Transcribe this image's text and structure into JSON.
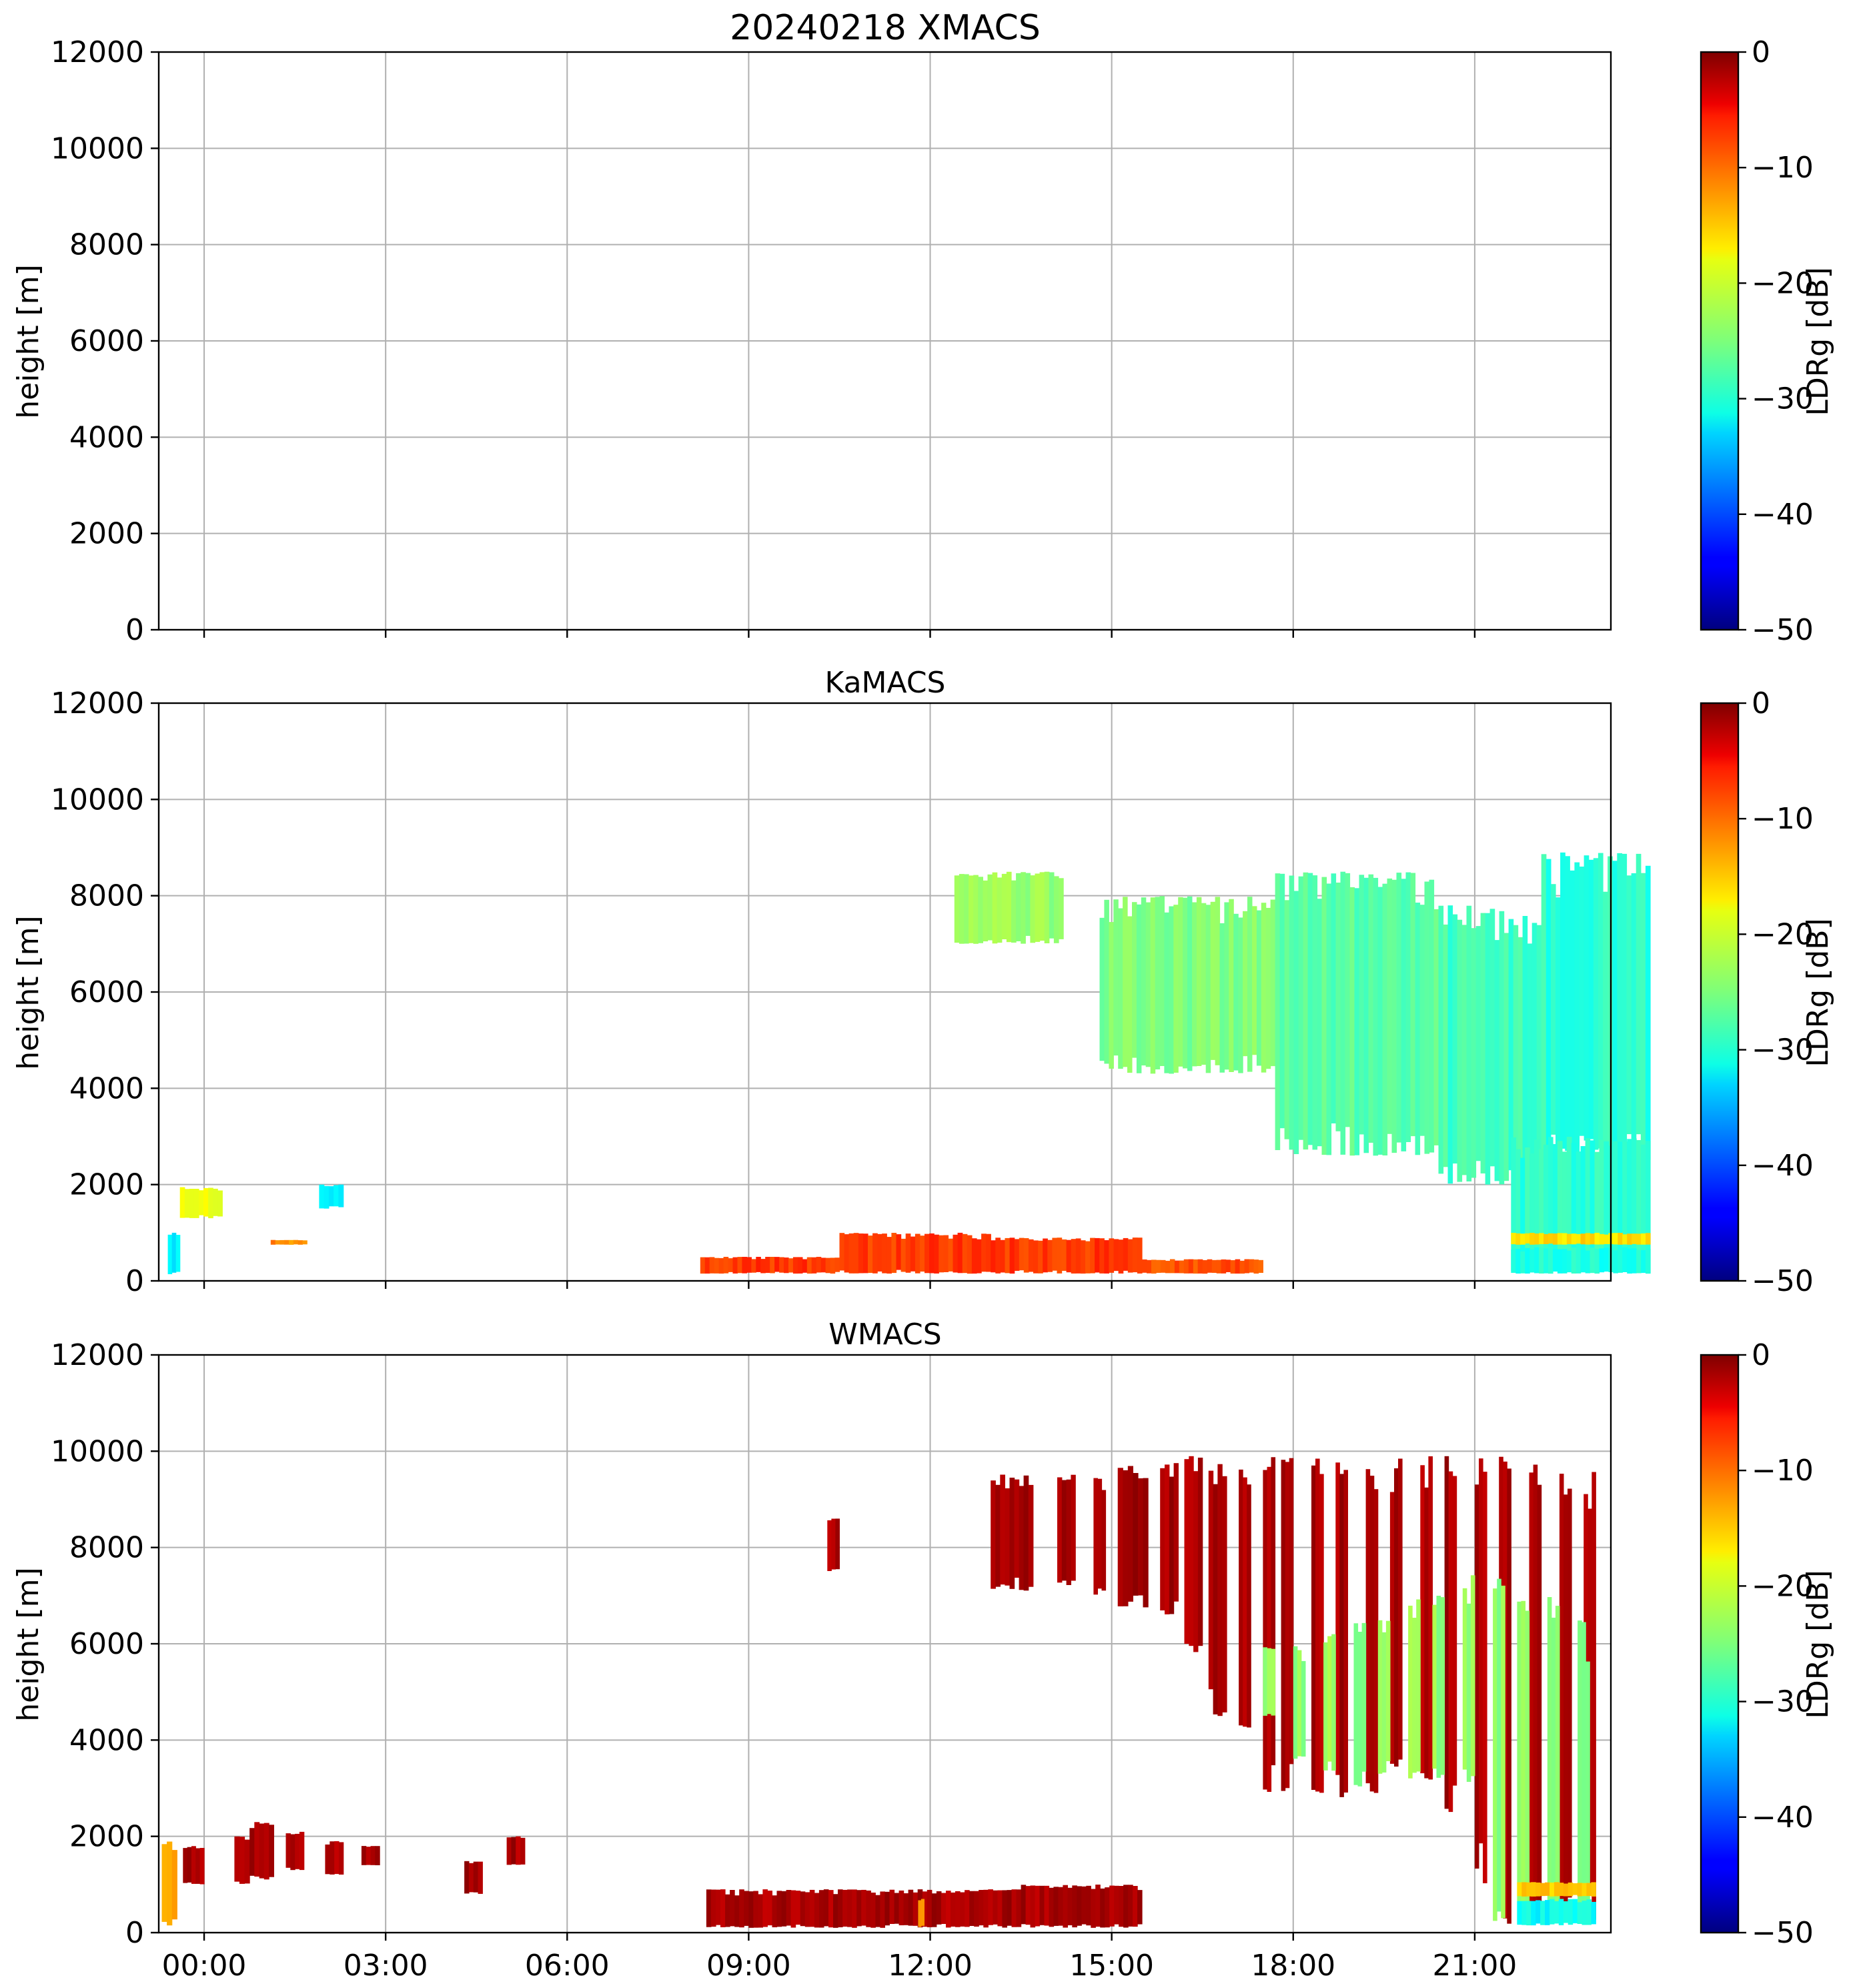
{
  "chart_data": [
    {
      "type": "heatmap",
      "title": "20240218 XMACS",
      "ylabel": "height [m]",
      "ylim": [
        0,
        12000
      ],
      "yticks": [
        "0",
        "2000",
        "4000",
        "6000",
        "8000",
        "10000",
        "12000"
      ],
      "xlim": [
        "23:00",
        "23:59"
      ],
      "grid": true,
      "colorbar": {
        "label": "LDRg [dB]",
        "range": [
          -50,
          0
        ],
        "ticks": [
          "0",
          "−10",
          "−20",
          "−30",
          "−40",
          "−50"
        ],
        "colormap": "jet"
      },
      "regions": []
    },
    {
      "type": "heatmap",
      "title": "KaMACS",
      "ylabel": "height [m]",
      "ylim": [
        0,
        12000
      ],
      "yticks": [
        "0",
        "2000",
        "4000",
        "6000",
        "8000",
        "10000",
        "12000"
      ],
      "grid": true,
      "colorbar": {
        "label": "LDRg [dB]",
        "range": [
          -50,
          0
        ],
        "ticks": [
          "0",
          "−10",
          "−20",
          "−30",
          "−40",
          "−50"
        ],
        "colormap": "jet"
      },
      "regions": [
        {
          "t": [
            -0.6,
            -0.4
          ],
          "z": [
            100,
            1000
          ],
          "ldr": -32
        },
        {
          "t": [
            -0.4,
            0.3
          ],
          "z": [
            1300,
            1950
          ],
          "ldr": -20
        },
        {
          "t": [
            1.1,
            1.7
          ],
          "z": [
            750,
            850
          ],
          "ldr": -13
        },
        {
          "t": [
            1.9,
            2.3
          ],
          "z": [
            1500,
            2000
          ],
          "ldr": -32
        },
        {
          "t": [
            8.2,
            10.5
          ],
          "z": [
            150,
            500
          ],
          "ldr": -9
        },
        {
          "t": [
            10.5,
            13.0
          ],
          "z": [
            150,
            1000
          ],
          "ldr": -9
        },
        {
          "t": [
            13.0,
            15.5
          ],
          "z": [
            150,
            900
          ],
          "ldr": -9
        },
        {
          "t": [
            15.5,
            17.5
          ],
          "z": [
            150,
            450
          ],
          "ldr": -10
        },
        {
          "t": [
            12.4,
            14.2
          ],
          "z": [
            7000,
            8500
          ],
          "ldr": -24
        },
        {
          "t": [
            14.8,
            17.7
          ],
          "z": [
            4300,
            8000
          ],
          "ldr": -25
        },
        {
          "t": [
            17.7,
            20.4
          ],
          "z": [
            2600,
            8500
          ],
          "ldr": -27
        },
        {
          "t": [
            20.4,
            22.1
          ],
          "z": [
            2000,
            7800
          ],
          "ldr": -28
        },
        {
          "t": [
            22.1,
            23.9
          ],
          "z": [
            2500,
            8900
          ],
          "ldr": -29
        },
        {
          "t": [
            21.6,
            23.9
          ],
          "z": [
            150,
            3000
          ],
          "ldr": -29
        },
        {
          "t": [
            21.6,
            23.9
          ],
          "z": [
            150,
            700
          ],
          "ldr": -30
        },
        {
          "t": [
            21.6,
            23.9
          ],
          "z": [
            750,
            1000
          ],
          "ldr": -17
        }
      ]
    },
    {
      "type": "heatmap",
      "title": "WMACS",
      "ylabel": "height [m]",
      "ylim": [
        0,
        12000
      ],
      "yticks": [
        "0",
        "2000",
        "4000",
        "6000",
        "8000",
        "10000",
        "12000"
      ],
      "xlabel": "",
      "xticks": [
        "00:00",
        "03:00",
        "06:00",
        "09:00",
        "12:00",
        "15:00",
        "18:00",
        "21:00"
      ],
      "xlim": [
        -0.75,
        23.25
      ],
      "grid": true,
      "colorbar": {
        "label": "LDRg [dB]",
        "range": [
          -50,
          0
        ],
        "ticks": [
          "0",
          "−10",
          "−20",
          "−30",
          "−40",
          "−50"
        ],
        "colormap": "jet"
      },
      "regions": [
        {
          "t": [
            -0.7,
            -0.45
          ],
          "z": [
            150,
            1900
          ],
          "ldr": -15
        },
        {
          "t": [
            -0.35,
            0.0
          ],
          "z": [
            1000,
            1800
          ],
          "ldr": -2
        },
        {
          "t": [
            0.5,
            0.75
          ],
          "z": [
            1000,
            2000
          ],
          "ldr": -2
        },
        {
          "t": [
            0.75,
            1.15
          ],
          "z": [
            1100,
            2300
          ],
          "ldr": -2
        },
        {
          "t": [
            1.35,
            1.65
          ],
          "z": [
            1300,
            2100
          ],
          "ldr": -2
        },
        {
          "t": [
            2.0,
            2.3
          ],
          "z": [
            1200,
            1900
          ],
          "ldr": -2
        },
        {
          "t": [
            2.6,
            2.9
          ],
          "z": [
            1400,
            1800
          ],
          "ldr": -2
        },
        {
          "t": [
            4.3,
            4.6
          ],
          "z": [
            800,
            1500
          ],
          "ldr": -2
        },
        {
          "t": [
            5.0,
            5.3
          ],
          "z": [
            1400,
            2000
          ],
          "ldr": -2
        },
        {
          "t": [
            10.3,
            10.5
          ],
          "z": [
            7500,
            8600
          ],
          "ldr": -2
        },
        {
          "t": [
            13.0,
            13.7
          ],
          "z": [
            7100,
            9600
          ],
          "ldr": -2
        },
        {
          "t": [
            14.1,
            14.4
          ],
          "z": [
            7200,
            9600
          ],
          "ldr": -2
        },
        {
          "t": [
            14.7,
            14.9
          ],
          "z": [
            7000,
            9500
          ],
          "ldr": -2
        },
        {
          "t": [
            15.1,
            15.6
          ],
          "z": [
            6700,
            9700
          ],
          "ldr": -2
        },
        {
          "t": [
            15.8,
            16.1
          ],
          "z": [
            6600,
            9800
          ],
          "ldr": -2
        },
        {
          "t": [
            16.2,
            16.5
          ],
          "z": [
            5800,
            9900
          ],
          "ldr": -2
        },
        {
          "t": [
            16.6,
            16.9
          ],
          "z": [
            4500,
            9800
          ],
          "ldr": -2
        },
        {
          "t": [
            17.1,
            17.3
          ],
          "z": [
            4200,
            9800
          ],
          "ldr": -2
        },
        {
          "t": [
            17.5,
            17.7
          ],
          "z": [
            2900,
            9900
          ],
          "ldr": -2
        },
        {
          "t": [
            17.8,
            18.0
          ],
          "z": [
            2900,
            9900
          ],
          "ldr": -2
        },
        {
          "t": [
            18.3,
            18.5
          ],
          "z": [
            2900,
            9900
          ],
          "ldr": -2
        },
        {
          "t": [
            18.7,
            18.9
          ],
          "z": [
            2800,
            9900
          ],
          "ldr": -2
        },
        {
          "t": [
            19.2,
            19.4
          ],
          "z": [
            2900,
            9900
          ],
          "ldr": -2
        },
        {
          "t": [
            19.6,
            19.8
          ],
          "z": [
            3300,
            9900
          ],
          "ldr": -2
        },
        {
          "t": [
            20.1,
            20.3
          ],
          "z": [
            3000,
            9900
          ],
          "ldr": -2
        },
        {
          "t": [
            20.5,
            20.7
          ],
          "z": [
            2500,
            9900
          ],
          "ldr": -2
        },
        {
          "t": [
            21.0,
            21.2
          ],
          "z": [
            1000,
            9900
          ],
          "ldr": -2
        },
        {
          "t": [
            21.4,
            21.6
          ],
          "z": [
            150,
            9900
          ],
          "ldr": -2
        },
        {
          "t": [
            21.9,
            22.1
          ],
          "z": [
            150,
            9900
          ],
          "ldr": -2
        },
        {
          "t": [
            22.4,
            22.6
          ],
          "z": [
            150,
            9900
          ],
          "ldr": -2
        },
        {
          "t": [
            22.8,
            23.0
          ],
          "z": [
            150,
            9800
          ],
          "ldr": -2
        },
        {
          "t": [
            17.5,
            17.7
          ],
          "z": [
            4500,
            6000
          ],
          "ldr": -24
        },
        {
          "t": [
            18.0,
            18.2
          ],
          "z": [
            3500,
            6000
          ],
          "ldr": -24
        },
        {
          "t": [
            18.5,
            18.7
          ],
          "z": [
            3300,
            6200
          ],
          "ldr": -24
        },
        {
          "t": [
            19.0,
            19.2
          ],
          "z": [
            3000,
            6500
          ],
          "ldr": -24
        },
        {
          "t": [
            19.4,
            19.6
          ],
          "z": [
            3300,
            6500
          ],
          "ldr": -24
        },
        {
          "t": [
            19.9,
            20.1
          ],
          "z": [
            3200,
            7000
          ],
          "ldr": -24
        },
        {
          "t": [
            20.3,
            20.5
          ],
          "z": [
            3200,
            7000
          ],
          "ldr": -24
        },
        {
          "t": [
            20.8,
            21.0
          ],
          "z": [
            3000,
            7500
          ],
          "ldr": -24
        },
        {
          "t": [
            21.3,
            21.5
          ],
          "z": [
            150,
            7500
          ],
          "ldr": -24
        },
        {
          "t": [
            21.7,
            21.9
          ],
          "z": [
            150,
            7000
          ],
          "ldr": -24
        },
        {
          "t": [
            22.2,
            22.4
          ],
          "z": [
            150,
            7000
          ],
          "ldr": -24
        },
        {
          "t": [
            22.7,
            22.9
          ],
          "z": [
            150,
            6500
          ],
          "ldr": -24
        },
        {
          "t": [
            21.7,
            23.0
          ],
          "z": [
            150,
            700
          ],
          "ldr": -31
        },
        {
          "t": [
            21.7,
            23.0
          ],
          "z": [
            750,
            1050
          ],
          "ldr": -16
        },
        {
          "t": [
            8.3,
            13.5
          ],
          "z": [
            100,
            900
          ],
          "ldr": -2
        },
        {
          "t": [
            13.5,
            15.5
          ],
          "z": [
            100,
            1000
          ],
          "ldr": -2
        },
        {
          "t": [
            11.8,
            11.9
          ],
          "z": [
            100,
            700
          ],
          "ldr": -15
        }
      ]
    }
  ]
}
